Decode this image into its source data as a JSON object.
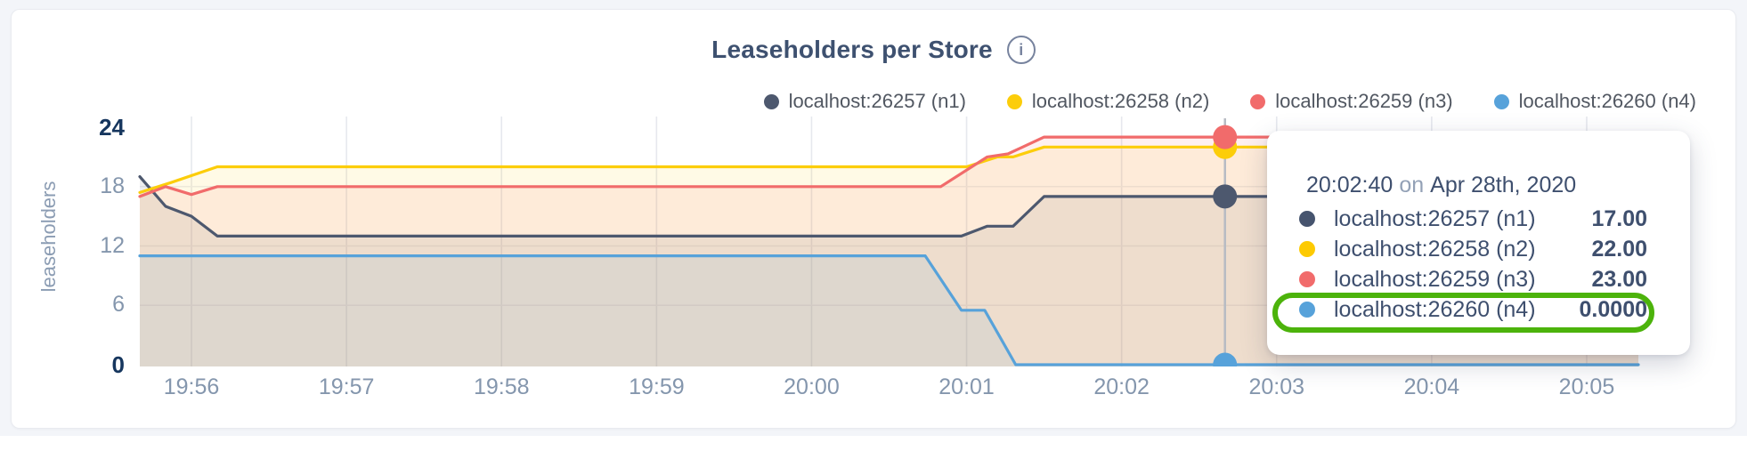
{
  "header": {
    "title": "Leaseholders per Store",
    "info_icon_glyph": "i"
  },
  "y_axis_title": "leaseholders",
  "chart_data": {
    "type": "area",
    "title": "Leaseholders per Store",
    "ylabel": "leaseholders",
    "ylim": [
      0,
      24
    ],
    "grid": true,
    "legend_position": "top-right",
    "x_unit": "seconds since 19:55:40",
    "x_domain": [
      0,
      580
    ],
    "x_ticks": [
      {
        "t": 20,
        "label": "19:56"
      },
      {
        "t": 80,
        "label": "19:57"
      },
      {
        "t": 140,
        "label": "19:58"
      },
      {
        "t": 200,
        "label": "19:59"
      },
      {
        "t": 260,
        "label": "20:00"
      },
      {
        "t": 320,
        "label": "20:01"
      },
      {
        "t": 380,
        "label": "20:02"
      },
      {
        "t": 440,
        "label": "20:03"
      },
      {
        "t": 500,
        "label": "20:04"
      },
      {
        "t": 560,
        "label": "20:05"
      }
    ],
    "y_ticks": [
      {
        "v": 0,
        "label": "0",
        "bold": true
      },
      {
        "v": 6,
        "label": "6",
        "bold": false
      },
      {
        "v": 12,
        "label": "12",
        "bold": false
      },
      {
        "v": 18,
        "label": "18",
        "bold": false
      },
      {
        "v": 24,
        "label": "24",
        "bold": true
      }
    ],
    "grid_y_values": [
      6,
      12,
      18
    ],
    "series": [
      {
        "name": "localhost:26257 (n1)",
        "color": "#4d586e",
        "points": [
          [
            0,
            19
          ],
          [
            10,
            16
          ],
          [
            20,
            15
          ],
          [
            30,
            13
          ],
          [
            318,
            13
          ],
          [
            328,
            14
          ],
          [
            338,
            14
          ],
          [
            350,
            17
          ],
          [
            580,
            17
          ]
        ]
      },
      {
        "name": "localhost:26258 (n2)",
        "color": "#fccd0a",
        "points": [
          [
            0,
            17.4
          ],
          [
            12,
            18.4
          ],
          [
            30,
            20
          ],
          [
            320,
            20
          ],
          [
            332,
            21
          ],
          [
            338,
            21
          ],
          [
            350,
            22
          ],
          [
            580,
            22
          ]
        ]
      },
      {
        "name": "localhost:26259 (n3)",
        "color": "#f16b6b",
        "points": [
          [
            0,
            17
          ],
          [
            10,
            18
          ],
          [
            20,
            17.2
          ],
          [
            30,
            18
          ],
          [
            310,
            18
          ],
          [
            328,
            21
          ],
          [
            336,
            21.3
          ],
          [
            350,
            23
          ],
          [
            580,
            23
          ]
        ]
      },
      {
        "name": "localhost:26260 (n4)",
        "color": "#57a2da",
        "points": [
          [
            0,
            11
          ],
          [
            304,
            11
          ],
          [
            318,
            5.5
          ],
          [
            327,
            5.5
          ],
          [
            339,
            0
          ],
          [
            580,
            0
          ]
        ]
      }
    ],
    "hover": {
      "t": 420,
      "time_label": "20:02:40",
      "values": [
        17,
        22,
        23,
        0
      ]
    }
  },
  "tooltip": {
    "time": "20:02:40",
    "connector": "on",
    "date": "Apr 28th, 2020",
    "rows": [
      {
        "label": "localhost:26257 (n1)",
        "value": "17.00",
        "color": "#46546e",
        "highlighted": false
      },
      {
        "label": "localhost:26258 (n2)",
        "value": "22.00",
        "color": "#fdca02",
        "highlighted": false
      },
      {
        "label": "localhost:26259 (n3)",
        "value": "23.00",
        "color": "#f16b6b",
        "highlighted": false
      },
      {
        "label": "localhost:26260 (n4)",
        "value": "0.0000",
        "color": "#57a2da",
        "highlighted": true
      }
    ]
  },
  "annotation": {
    "color": "#4cb30b",
    "highlighted_row": "localhost:26260 (n4)"
  }
}
